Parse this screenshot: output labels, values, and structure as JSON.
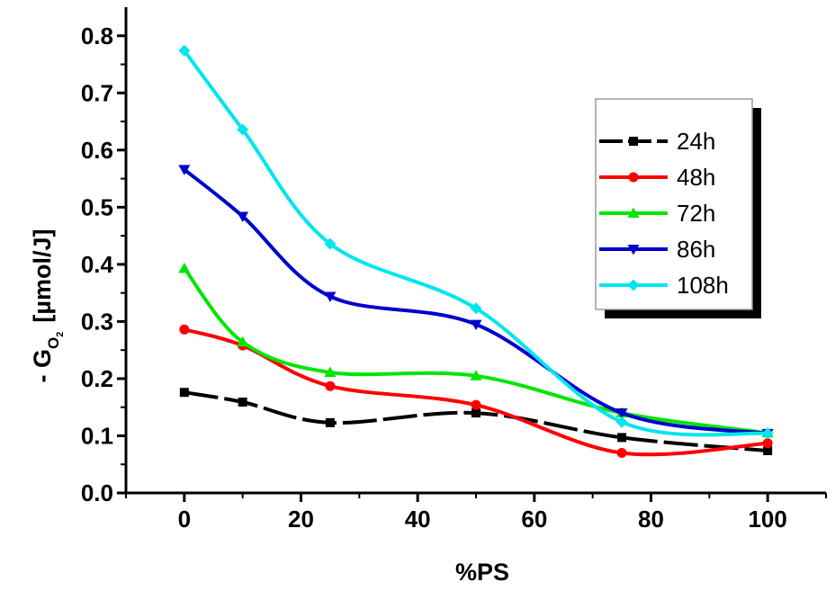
{
  "chart_data": {
    "type": "line",
    "title": "",
    "xlabel": "%PS",
    "ylabel": {
      "prefix": "- G",
      "subscript": "O",
      "subsubscript": "2",
      "units": "[µmol/J]"
    },
    "xlim": [
      -10,
      110
    ],
    "ylim": [
      0.0,
      0.85
    ],
    "x_ticks": [
      0,
      20,
      40,
      60,
      80,
      100
    ],
    "x_tick_labels": [
      "0",
      "20",
      "40",
      "60",
      "80",
      "100"
    ],
    "y_ticks": [
      0.0,
      0.1,
      0.2,
      0.3,
      0.4,
      0.5,
      0.6,
      0.7,
      0.8
    ],
    "y_tick_labels": [
      "0.0",
      "0.1",
      "0.2",
      "0.3",
      "0.4",
      "0.5",
      "0.6",
      "0.7",
      "0.8"
    ],
    "grid": false,
    "legend_position": "top-right",
    "x": [
      0,
      10,
      25,
      50,
      75,
      100
    ],
    "series": [
      {
        "name": "24h",
        "color": "#000000",
        "marker": "square",
        "dashed": true,
        "values": [
          0.176,
          0.159,
          0.123,
          0.14,
          0.097,
          0.074
        ]
      },
      {
        "name": "48h",
        "color": "#ff0000",
        "marker": "circle",
        "dashed": false,
        "values": [
          0.286,
          0.258,
          0.187,
          0.154,
          0.07,
          0.087
        ]
      },
      {
        "name": "72h",
        "color": "#00e600",
        "marker": "triangle-up",
        "dashed": false,
        "values": [
          0.393,
          0.264,
          0.211,
          0.205,
          0.14,
          0.105
        ]
      },
      {
        "name": "86h",
        "color": "#0000cc",
        "marker": "triangle-down",
        "dashed": false,
        "values": [
          0.566,
          0.484,
          0.344,
          0.295,
          0.14,
          0.104
        ]
      },
      {
        "name": "108h",
        "color": "#00e5ee",
        "marker": "diamond",
        "dashed": false,
        "values": [
          0.774,
          0.636,
          0.436,
          0.323,
          0.124,
          0.104
        ]
      }
    ]
  }
}
